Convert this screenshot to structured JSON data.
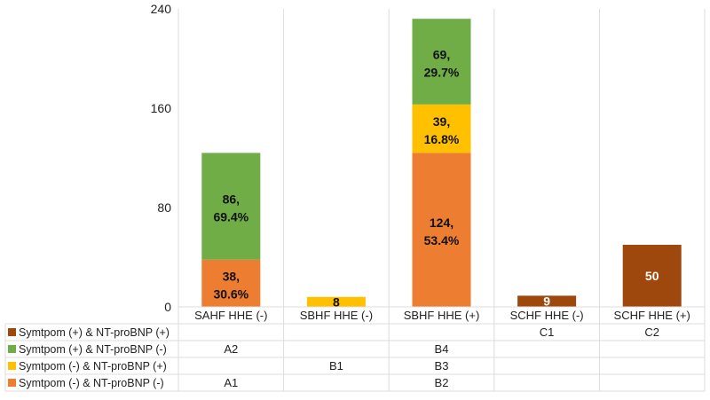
{
  "chart_data": {
    "type": "bar",
    "stacked": true,
    "title": "",
    "xlabel": "",
    "ylabel": "",
    "ylim": [
      0,
      240
    ],
    "yticks": [
      "0",
      "80",
      "160",
      "240"
    ],
    "ytick_values": [
      0,
      80,
      160,
      240
    ],
    "grid": "vertical",
    "categories": [
      "SAHF HHE (-)",
      "SBHF HHE (-)",
      "SBHF HHE (+)",
      "SCHF HHE (-)",
      "SCHF HHE (+)"
    ],
    "series": [
      {
        "name": "Symtpom (-) & NT-proBNP (-)",
        "color": "#ED7D31",
        "label_color": "#111111",
        "values": [
          38,
          0,
          124,
          0,
          0
        ],
        "labels": [
          "38, 30.6%",
          "",
          "124, 53.4%",
          "",
          ""
        ],
        "table_row": [
          "A1",
          "",
          "B2",
          "",
          ""
        ]
      },
      {
        "name": "Symtpom (-) & NT-proBNP (+)",
        "color": "#FFC000",
        "label_color": "#111111",
        "values": [
          0,
          8,
          39,
          0,
          0
        ],
        "labels": [
          "",
          "8",
          "39, 16.8%",
          "",
          ""
        ],
        "table_row": [
          "",
          "B1",
          "B3",
          "",
          ""
        ]
      },
      {
        "name": "Symtpom (+) & NT-proBNP (-)",
        "color": "#70AD47",
        "label_color": "#111111",
        "values": [
          86,
          0,
          69,
          0,
          0
        ],
        "labels": [
          "86, 69.4%",
          "",
          "69, 29.7%",
          "",
          ""
        ],
        "table_row": [
          "A2",
          "",
          "B4",
          "",
          ""
        ]
      },
      {
        "name": "Symtpom (+) & NT-proBNP (+)",
        "color": "#9E480E",
        "label_color": "#ffffff",
        "values": [
          0,
          0,
          0,
          9,
          50
        ],
        "labels": [
          "",
          "",
          "",
          "9",
          "50"
        ],
        "table_row": [
          "",
          "",
          "",
          "C1",
          "C2"
        ]
      }
    ],
    "legend_position": "data-table-left"
  }
}
